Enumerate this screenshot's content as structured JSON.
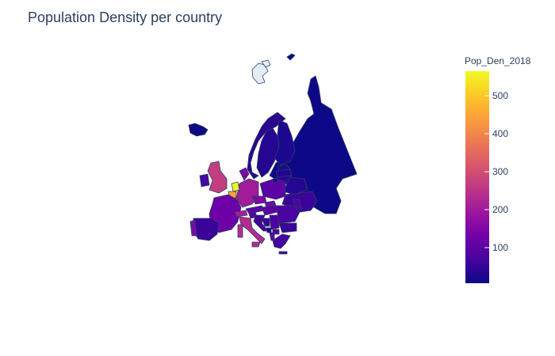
{
  "chart": {
    "title": "Population Density per country"
  },
  "chart_data": {
    "type": "choropleth",
    "title": "Population Density per country",
    "scope": "europe",
    "colorbar": {
      "title": "Pop_Den_2018",
      "range": [
        3,
        560
      ],
      "ticks": [
        "100",
        "200",
        "300",
        "400",
        "500"
      ],
      "tick_values": [
        100,
        200,
        300,
        400,
        500
      ],
      "colorscale": "Plasma",
      "colors": [
        "#0d0887",
        "#46039f",
        "#7201a8",
        "#9c179e",
        "#bd3786",
        "#d8576b",
        "#ed7953",
        "#fb9f3a",
        "#fdca26",
        "#f0f921"
      ]
    },
    "no_data_color": "#e5ecf6",
    "border_color": "#2a3f5f"
  },
  "icons": {
    "colorbar": "colorbar-gradient",
    "map": "europe-map"
  }
}
